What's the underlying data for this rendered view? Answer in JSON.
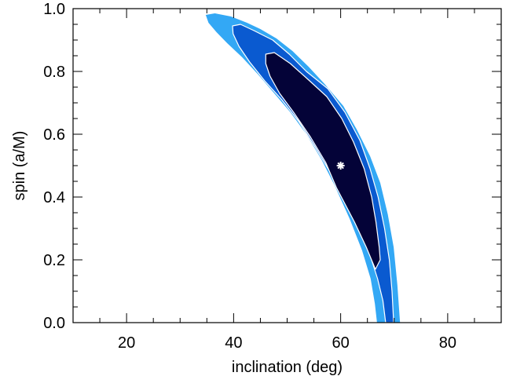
{
  "chart_data": {
    "type": "contour",
    "xlabel": "inclination (deg)",
    "ylabel": "spin (a/M)",
    "xlim": [
      10,
      90
    ],
    "ylim": [
      0.0,
      1.0
    ],
    "xticks": [
      20,
      40,
      60,
      80
    ],
    "xtick_labels": [
      "20",
      "40",
      "60",
      "80"
    ],
    "yticks": [
      0.0,
      0.2,
      0.4,
      0.6,
      0.8,
      1.0
    ],
    "ytick_labels": [
      "0.0",
      "0.2",
      "0.4",
      "0.6",
      "0.8",
      "1.0"
    ],
    "x_minor_step": 5,
    "y_minor_step": 0.05,
    "best_fit": {
      "x": 60,
      "y": 0.5,
      "marker": "asterisk",
      "color": "#ffffff"
    },
    "contours": [
      {
        "level": "outer",
        "fill": "#33a8f5",
        "points": [
          [
            34.8,
            0.98
          ],
          [
            36.5,
            0.985
          ],
          [
            39.5,
            0.975
          ],
          [
            42.5,
            0.955
          ],
          [
            45,
            0.935
          ],
          [
            48,
            0.905
          ],
          [
            51,
            0.865
          ],
          [
            54,
            0.815
          ],
          [
            57,
            0.76
          ],
          [
            60.5,
            0.69
          ],
          [
            63,
            0.615
          ],
          [
            65.5,
            0.53
          ],
          [
            67.4,
            0.445
          ],
          [
            68.8,
            0.345
          ],
          [
            69.9,
            0.24
          ],
          [
            70.6,
            0.12
          ],
          [
            71.1,
            0.0
          ],
          [
            66.8,
            0.0
          ],
          [
            66.4,
            0.06
          ],
          [
            65.6,
            0.14
          ],
          [
            64,
            0.23
          ],
          [
            61.7,
            0.33
          ],
          [
            58.8,
            0.44
          ],
          [
            56.4,
            0.52
          ],
          [
            53.6,
            0.6
          ],
          [
            50.6,
            0.67
          ],
          [
            47.6,
            0.73
          ],
          [
            44.6,
            0.79
          ],
          [
            41.6,
            0.845
          ],
          [
            38.8,
            0.89
          ],
          [
            36.8,
            0.925
          ],
          [
            35.3,
            0.955
          ]
        ]
      },
      {
        "level": "middle",
        "fill": "#0a5ad0",
        "points": [
          [
            39.8,
            0.945
          ],
          [
            41.3,
            0.95
          ],
          [
            43.8,
            0.93
          ],
          [
            47.3,
            0.9
          ],
          [
            50.4,
            0.855
          ],
          [
            53.6,
            0.8
          ],
          [
            57.6,
            0.745
          ],
          [
            60.8,
            0.67
          ],
          [
            63.6,
            0.58
          ],
          [
            65.5,
            0.49
          ],
          [
            67,
            0.4
          ],
          [
            68.2,
            0.3
          ],
          [
            69.1,
            0.2
          ],
          [
            69.6,
            0.1
          ],
          [
            69.9,
            0.0
          ],
          [
            68.4,
            0.0
          ],
          [
            67.9,
            0.07
          ],
          [
            66.9,
            0.14
          ],
          [
            65.4,
            0.22
          ],
          [
            63,
            0.31
          ],
          [
            60.3,
            0.4
          ],
          [
            58,
            0.48
          ],
          [
            55.2,
            0.56
          ],
          [
            52.2,
            0.64
          ],
          [
            49,
            0.71
          ],
          [
            45.8,
            0.77
          ],
          [
            43,
            0.83
          ],
          [
            41,
            0.88
          ],
          [
            39.9,
            0.92
          ]
        ]
      },
      {
        "level": "inner",
        "fill": "#040338",
        "points": [
          [
            46,
            0.855
          ],
          [
            47.6,
            0.86
          ],
          [
            50.6,
            0.825
          ],
          [
            54.2,
            0.77
          ],
          [
            57.4,
            0.72
          ],
          [
            60.2,
            0.65
          ],
          [
            62.4,
            0.575
          ],
          [
            64.4,
            0.49
          ],
          [
            65.8,
            0.4
          ],
          [
            66.6,
            0.32
          ],
          [
            67.2,
            0.24
          ],
          [
            67.4,
            0.2
          ],
          [
            66.5,
            0.17
          ],
          [
            64.8,
            0.24
          ],
          [
            62.6,
            0.32
          ],
          [
            60.6,
            0.385
          ],
          [
            59.2,
            0.43
          ],
          [
            57.2,
            0.51
          ],
          [
            54.4,
            0.59
          ],
          [
            51.2,
            0.67
          ],
          [
            48.6,
            0.73
          ],
          [
            46.8,
            0.785
          ],
          [
            46,
            0.825
          ]
        ]
      }
    ]
  }
}
